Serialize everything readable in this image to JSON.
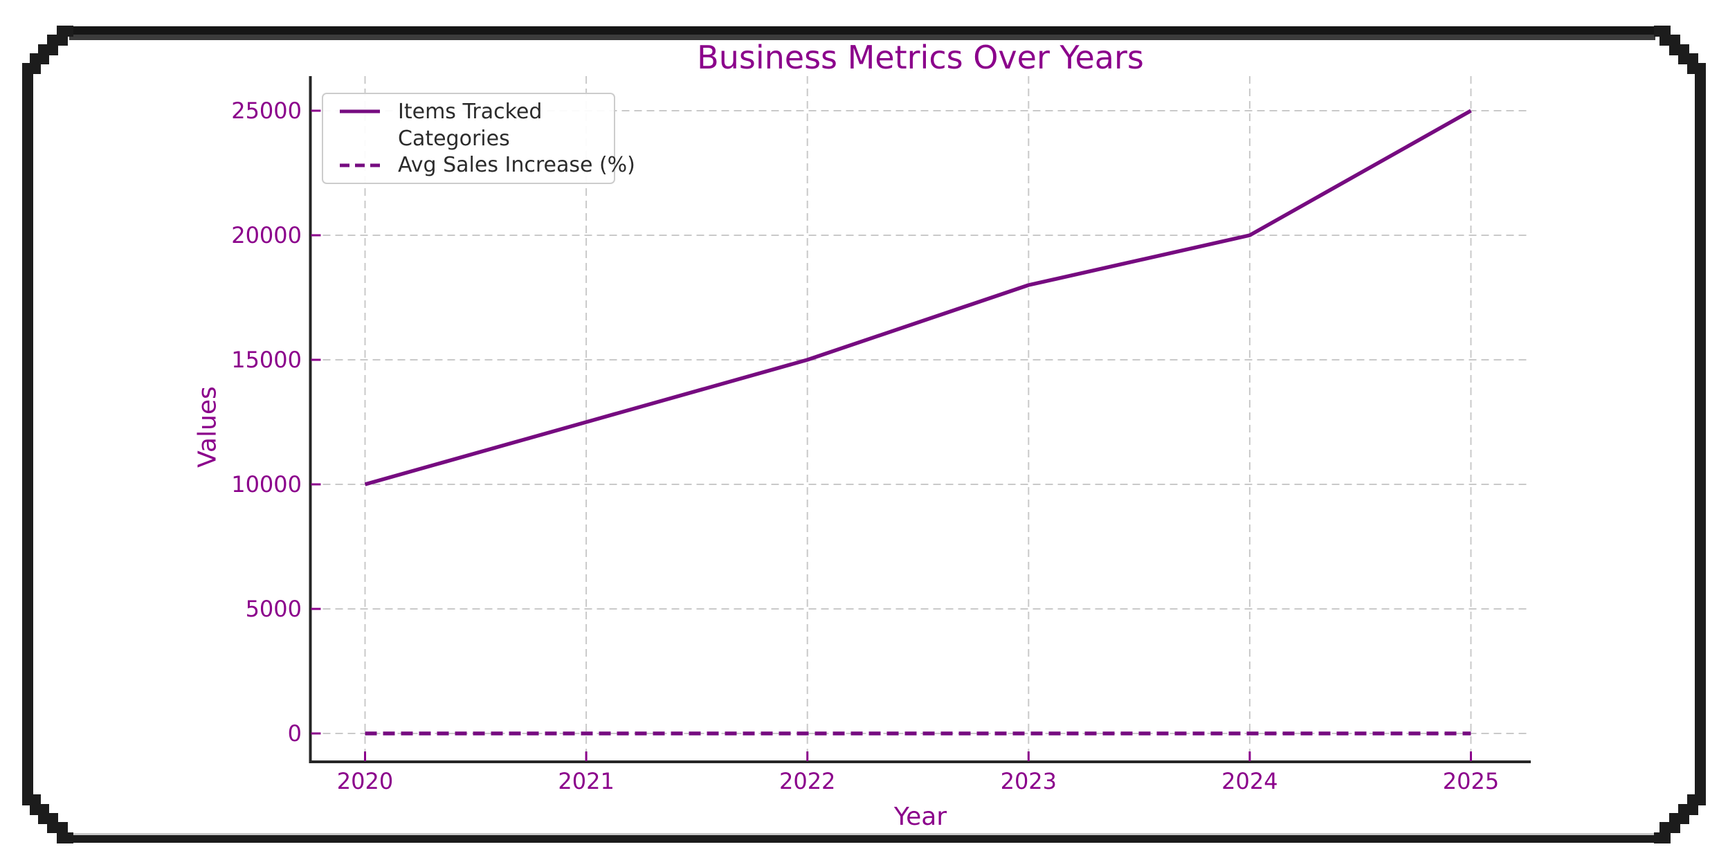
{
  "window": {
    "decorative_frame": "pixel-stepped rounded black border",
    "frame_color": "#1c1c1c"
  },
  "chart_data": {
    "type": "line",
    "title": "Business Metrics Over Years",
    "xlabel": "Year",
    "ylabel": "Values",
    "x": [
      2020,
      2021,
      2022,
      2023,
      2024,
      2025
    ],
    "x_tick_labels": [
      "2020",
      "2021",
      "2022",
      "2023",
      "2024",
      "2025"
    ],
    "y_ticks": [
      0,
      5000,
      10000,
      15000,
      20000,
      25000
    ],
    "y_tick_labels": [
      "0",
      "5000",
      "10000",
      "15000",
      "20000",
      "25000"
    ],
    "xlim": [
      2019.75,
      2025.27
    ],
    "ylim": [
      -1170,
      26330
    ],
    "grid": true,
    "grid_style": "dashed",
    "legend_position": "upper-left",
    "series": [
      {
        "name": "Items Tracked",
        "style": "solid",
        "color": "#760b80",
        "values": [
          10000,
          12500,
          15000,
          18000,
          20000,
          25000
        ]
      },
      {
        "name": "Categories",
        "style": "solid",
        "color": "#ffffff",
        "values": null,
        "note": "legend swatch and plot line not visible (white on white)"
      },
      {
        "name": "Avg Sales Increase (%)",
        "style": "dashed",
        "color": "#760b80",
        "values": [
          0,
          0,
          0,
          0,
          0,
          0
        ],
        "note": "reads as flat at ~0 at this axis scale"
      }
    ],
    "colors": {
      "title": "#8b008b",
      "axis_label": "#8b008b",
      "tick_label": "#8b008b",
      "gridline": "#c9c9c9",
      "spine": "#262626",
      "legend_border": "#cccccc",
      "legend_text": "#2b2b2b"
    }
  }
}
